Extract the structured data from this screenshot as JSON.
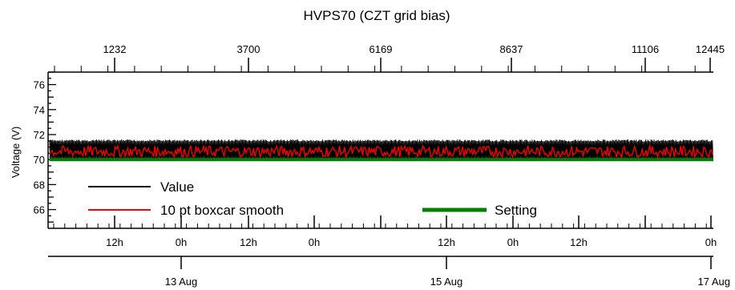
{
  "chart_data": {
    "type": "line",
    "title": "HVPS70 (CZT grid bias)",
    "ylabel": "Voltage (V)",
    "ylim": [
      64.5,
      77
    ],
    "y_ticks": [
      66,
      68,
      70,
      72,
      74,
      76
    ],
    "top_axis": {
      "ticks": [
        "1232",
        "3700",
        "6169",
        "8637",
        "11106",
        "12445"
      ]
    },
    "time_axis": {
      "hour_ticks": [
        "12h",
        "0h",
        "12h",
        "0h",
        "12h",
        "0h",
        "12h",
        "0h"
      ],
      "date_ticks": [
        "13 Aug",
        "15 Aug",
        "17 Aug"
      ]
    },
    "grid": false,
    "legend_position": "bottom-left",
    "series": [
      {
        "name": "Value",
        "color": "#000000",
        "band": [
          69.9,
          71.6
        ]
      },
      {
        "name": "10 pt boxcar smooth",
        "color": "#ff0000",
        "band": [
          70.2,
          71.1
        ]
      },
      {
        "name": "Setting",
        "color": "#008000",
        "values": [
          70
        ]
      }
    ]
  }
}
